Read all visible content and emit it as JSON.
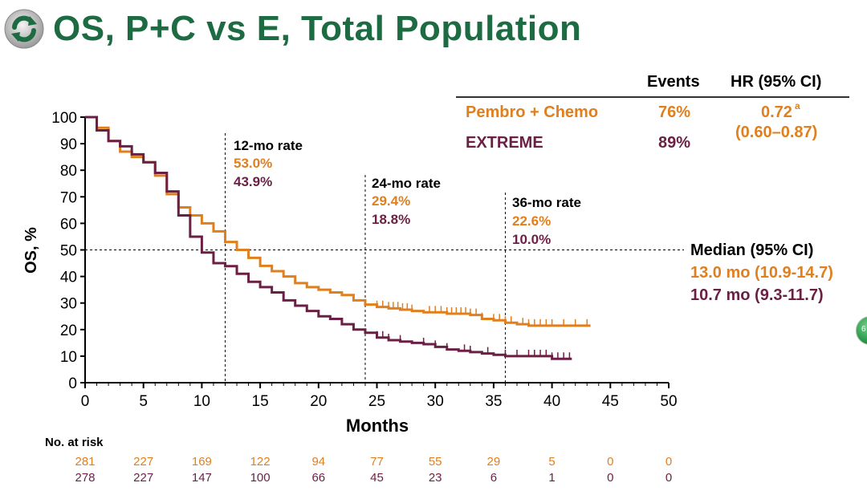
{
  "title": "OS, P+C vs E, Total Population",
  "colors": {
    "pembro": "#e07f1e",
    "extreme": "#6b1f45",
    "title": "#1d6b42",
    "axis": "#000000"
  },
  "legend": {
    "header_events": "Events",
    "header_hr": "HR (95% CI)",
    "rows": [
      {
        "name": "Pembro + Chemo",
        "events": "76%",
        "hr": "0.72",
        "hr_sup": "a",
        "ci": "(0.60–0.87)"
      },
      {
        "name": "EXTREME",
        "events": "89%"
      }
    ]
  },
  "median": {
    "label": "Median (95% CI)",
    "pembro": "13.0 mo (10.9-14.7)",
    "extreme": "10.7 mo (9.3-11.7)"
  },
  "rates": [
    {
      "label": "12-mo rate",
      "pembro": "53.0%",
      "extreme": "43.9%",
      "month": 12
    },
    {
      "label": "24-mo rate",
      "pembro": "29.4%",
      "extreme": "18.8%",
      "month": 24
    },
    {
      "label": "36-mo rate",
      "pembro": "22.6%",
      "extreme": "10.0%",
      "month": 36
    }
  ],
  "at_risk": {
    "label": "No. at risk",
    "pembro": [
      "281",
      "227",
      "169",
      "122",
      "94",
      "77",
      "55",
      "29",
      "5",
      "0",
      "0"
    ],
    "extreme": [
      "278",
      "227",
      "147",
      "100",
      "66",
      "45",
      "23",
      "6",
      "1",
      "0",
      "0"
    ]
  },
  "badge_text": "6",
  "chart_data": {
    "type": "line",
    "title": "OS, P+C vs E, Total Population",
    "xlabel": "Months",
    "ylabel": "OS, %",
    "xlim": [
      0,
      50
    ],
    "ylim": [
      0,
      100
    ],
    "xticks": [
      0,
      5,
      10,
      15,
      20,
      25,
      30,
      35,
      40,
      45,
      50
    ],
    "yticks": [
      0,
      10,
      20,
      30,
      40,
      50,
      60,
      70,
      80,
      90,
      100
    ],
    "reference_line_y": 50,
    "series": [
      {
        "name": "Pembro + Chemo",
        "x": [
          0,
          1,
          2,
          3,
          4,
          5,
          6,
          7,
          8,
          9,
          10,
          11,
          12,
          13,
          14,
          15,
          16,
          17,
          18,
          19,
          20,
          21,
          22,
          23,
          24,
          25,
          26,
          27,
          28,
          29,
          30,
          31,
          32,
          33,
          34,
          35,
          36,
          37,
          38,
          39,
          40,
          41,
          42,
          43.3
        ],
        "y": [
          100,
          96,
          91,
          87,
          85,
          83,
          78,
          71,
          66,
          63,
          60,
          57,
          53,
          50,
          47,
          44,
          42,
          40,
          37.5,
          36,
          35,
          34,
          33,
          31,
          29.4,
          28.5,
          28,
          27.5,
          27,
          26.5,
          26.5,
          26,
          26,
          25.5,
          24,
          23.5,
          22.6,
          22,
          21.5,
          21.5,
          21.5,
          21.5,
          21.5,
          21.5
        ],
        "censor_x": [
          25,
          25.5,
          26,
          26.4,
          26.8,
          27.2,
          27.6,
          28,
          29.5,
          30,
          30.5,
          31,
          31.4,
          31.8,
          32.2,
          32.6,
          33,
          33.5,
          34,
          35,
          35.5,
          36,
          36.5,
          37.5,
          38,
          38.5,
          39,
          39.5,
          40,
          41,
          42,
          43
        ]
      },
      {
        "name": "EXTREME",
        "x": [
          0,
          1,
          2,
          3,
          4,
          5,
          6,
          7,
          8,
          9,
          10,
          11,
          12,
          13,
          14,
          15,
          16,
          17,
          18,
          19,
          20,
          21,
          22,
          23,
          24,
          25,
          26,
          27,
          28,
          29,
          30,
          31,
          32,
          33,
          34,
          35,
          36,
          37,
          38,
          39,
          40,
          41.7
        ],
        "y": [
          100,
          95,
          91,
          89,
          86,
          83,
          79,
          72,
          63,
          55,
          49,
          45,
          43.9,
          41,
          38,
          36,
          34,
          31,
          29,
          27,
          25,
          24,
          22,
          20,
          18.8,
          17,
          16,
          15.5,
          15,
          14.5,
          13.5,
          12.5,
          12,
          11.5,
          11,
          10.5,
          10,
          10,
          10,
          10,
          9,
          9
        ],
        "censor_x": [
          25,
          25.5,
          26,
          27,
          29,
          30,
          31,
          32.5,
          33,
          34.5,
          36,
          37,
          38,
          38.5,
          39,
          39.5,
          40,
          40.5,
          41,
          41.5
        ]
      }
    ]
  }
}
